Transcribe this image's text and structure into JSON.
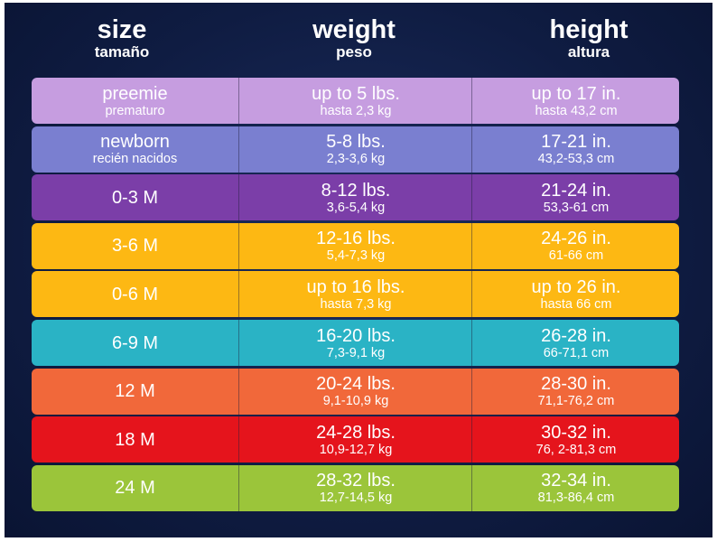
{
  "header": {
    "columns": [
      {
        "title": "size",
        "subtitle": "tamaño"
      },
      {
        "title": "weight",
        "subtitle": "peso"
      },
      {
        "title": "height",
        "subtitle": "altura"
      }
    ]
  },
  "table": {
    "rows": [
      [
        {
          "main": "preemie",
          "sub": "prematuro"
        },
        {
          "main": "up to 5 lbs.",
          "sub": "hasta 2,3 kg"
        },
        {
          "main": "up to 17 in.",
          "sub": "hasta 43,2 cm"
        }
      ],
      [
        {
          "main": "newborn",
          "sub": "recién nacidos"
        },
        {
          "main": "5-8 lbs.",
          "sub": "2,3-3,6 kg"
        },
        {
          "main": "17-21 in.",
          "sub": "43,2-53,3 cm"
        }
      ],
      [
        {
          "main": "0-3 M"
        },
        {
          "main": "8-12 lbs.",
          "sub": "3,6-5,4 kg"
        },
        {
          "main": "21-24 in.",
          "sub": "53,3-61 cm"
        }
      ],
      [
        {
          "main": "3-6 M"
        },
        {
          "main": "12-16 lbs.",
          "sub": "5,4-7,3 kg"
        },
        {
          "main": "24-26 in.",
          "sub": "61-66 cm"
        }
      ],
      [
        {
          "main": "0-6 M"
        },
        {
          "main": "up to 16 lbs.",
          "sub": "hasta 7,3 kg"
        },
        {
          "main": "up to 26 in.",
          "sub": "hasta 66 cm"
        }
      ],
      [
        {
          "main": "6-9 M"
        },
        {
          "main": "16-20 lbs.",
          "sub": "7,3-9,1 kg"
        },
        {
          "main": "26-28 in.",
          "sub": "66-71,1 cm"
        }
      ],
      [
        {
          "main": "12 M"
        },
        {
          "main": "20-24 lbs.",
          "sub": "9,1-10,9 kg"
        },
        {
          "main": "28-30 in.",
          "sub": "71,1-76,2 cm"
        }
      ],
      [
        {
          "main": "18 M"
        },
        {
          "main": "24-28 lbs.",
          "sub": "10,9-12,7 kg"
        },
        {
          "main": "30-32 in.",
          "sub": "76, 2-81,3 cm"
        }
      ],
      [
        {
          "main": "24 M"
        },
        {
          "main": "28-32 lbs.",
          "sub": "12,7-14,5 kg"
        },
        {
          "main": "32-34 in.",
          "sub": "81,3-86,4 cm"
        }
      ]
    ]
  }
}
